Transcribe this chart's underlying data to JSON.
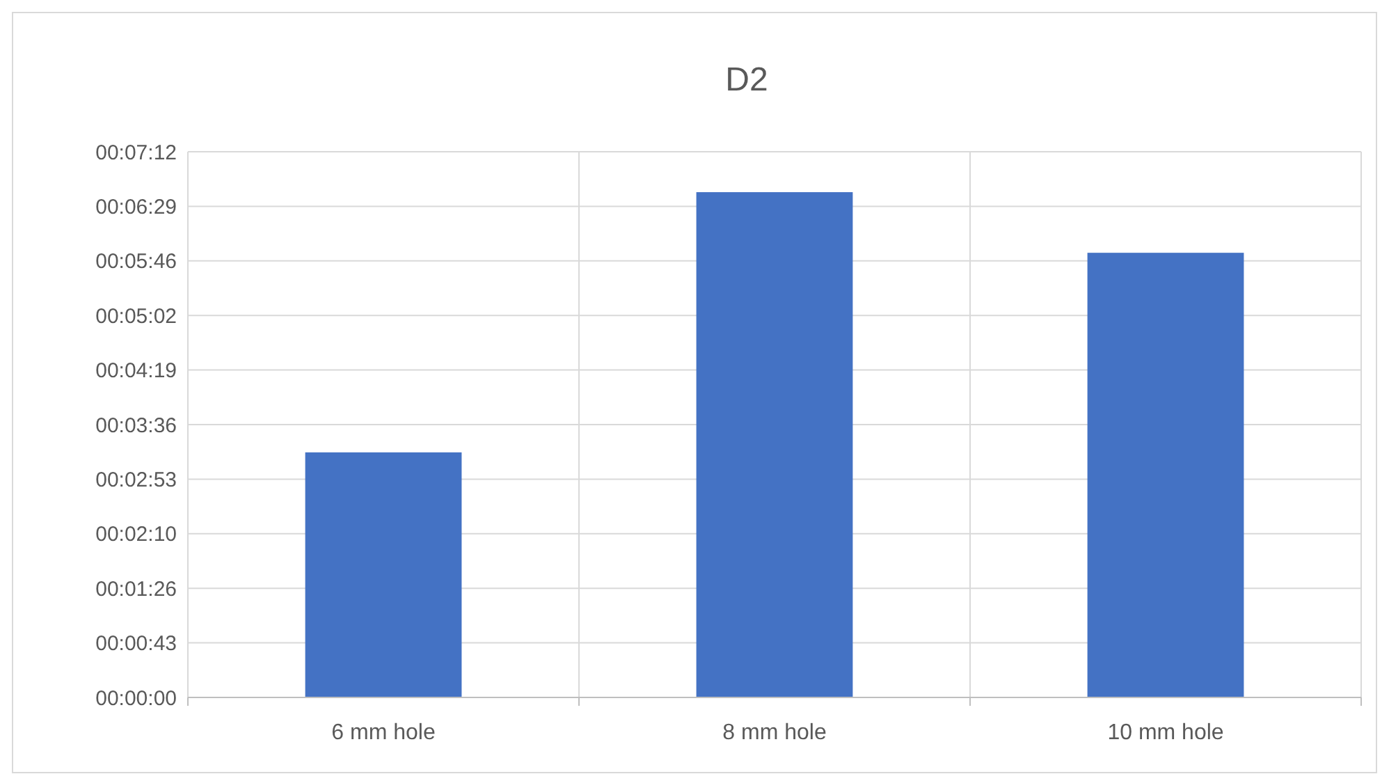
{
  "chart_data": {
    "type": "bar",
    "title": "D2",
    "categories": [
      "6 mm hole",
      "8 mm hole",
      "10 mm hole"
    ],
    "values": [
      194,
      400,
      352
    ],
    "color": "#4472c4",
    "ylim": [
      0,
      432
    ],
    "yticks": [
      {
        "value": 0,
        "label": "00:00:00"
      },
      {
        "value": 43.2,
        "label": "00:00:43"
      },
      {
        "value": 86.4,
        "label": "00:01:26"
      },
      {
        "value": 129.6,
        "label": "00:02:10"
      },
      {
        "value": 172.8,
        "label": "00:02:53"
      },
      {
        "value": 216,
        "label": "00:03:36"
      },
      {
        "value": 259.2,
        "label": "00:04:19"
      },
      {
        "value": 302.4,
        "label": "00:05:02"
      },
      {
        "value": 345.6,
        "label": "00:05:46"
      },
      {
        "value": 388.8,
        "label": "00:06:29"
      },
      {
        "value": 432,
        "label": "00:07:12"
      }
    ],
    "grid": true
  }
}
